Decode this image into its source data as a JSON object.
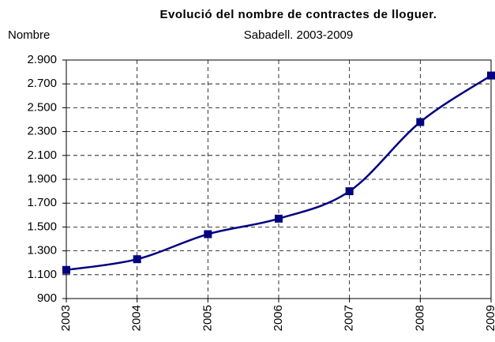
{
  "chart_data": {
    "type": "line",
    "title": "Evolució del nombre de contractes de lloguer.",
    "subtitle": "Sabadell. 2003-2009",
    "y_label": "Nombre",
    "categories": [
      "2003",
      "2004",
      "2005",
      "2006",
      "2007",
      "2008",
      "2009"
    ],
    "series": [
      {
        "name": "Contractes",
        "color": "#000080",
        "values": [
          1140,
          1230,
          1440,
          1570,
          1800,
          2380,
          2770
        ]
      }
    ],
    "ylim": [
      900,
      2900
    ],
    "yticks": [
      900,
      {
        "value": 1100,
        "label": "1.100"
      },
      {
        "value": 1300,
        "label": "1.300"
      },
      {
        "value": 1500,
        "label": "1.500"
      },
      {
        "value": 1700,
        "label": "1.700"
      },
      {
        "value": 1900,
        "label": "1.900"
      },
      {
        "value": 2100,
        "label": "2.100"
      },
      {
        "value": 2300,
        "label": "2.300"
      },
      {
        "value": 2500,
        "label": "2.500"
      },
      {
        "value": 2700,
        "label": "2.700"
      },
      {
        "value": 2900,
        "label": "2.900"
      }
    ],
    "grid": true
  }
}
